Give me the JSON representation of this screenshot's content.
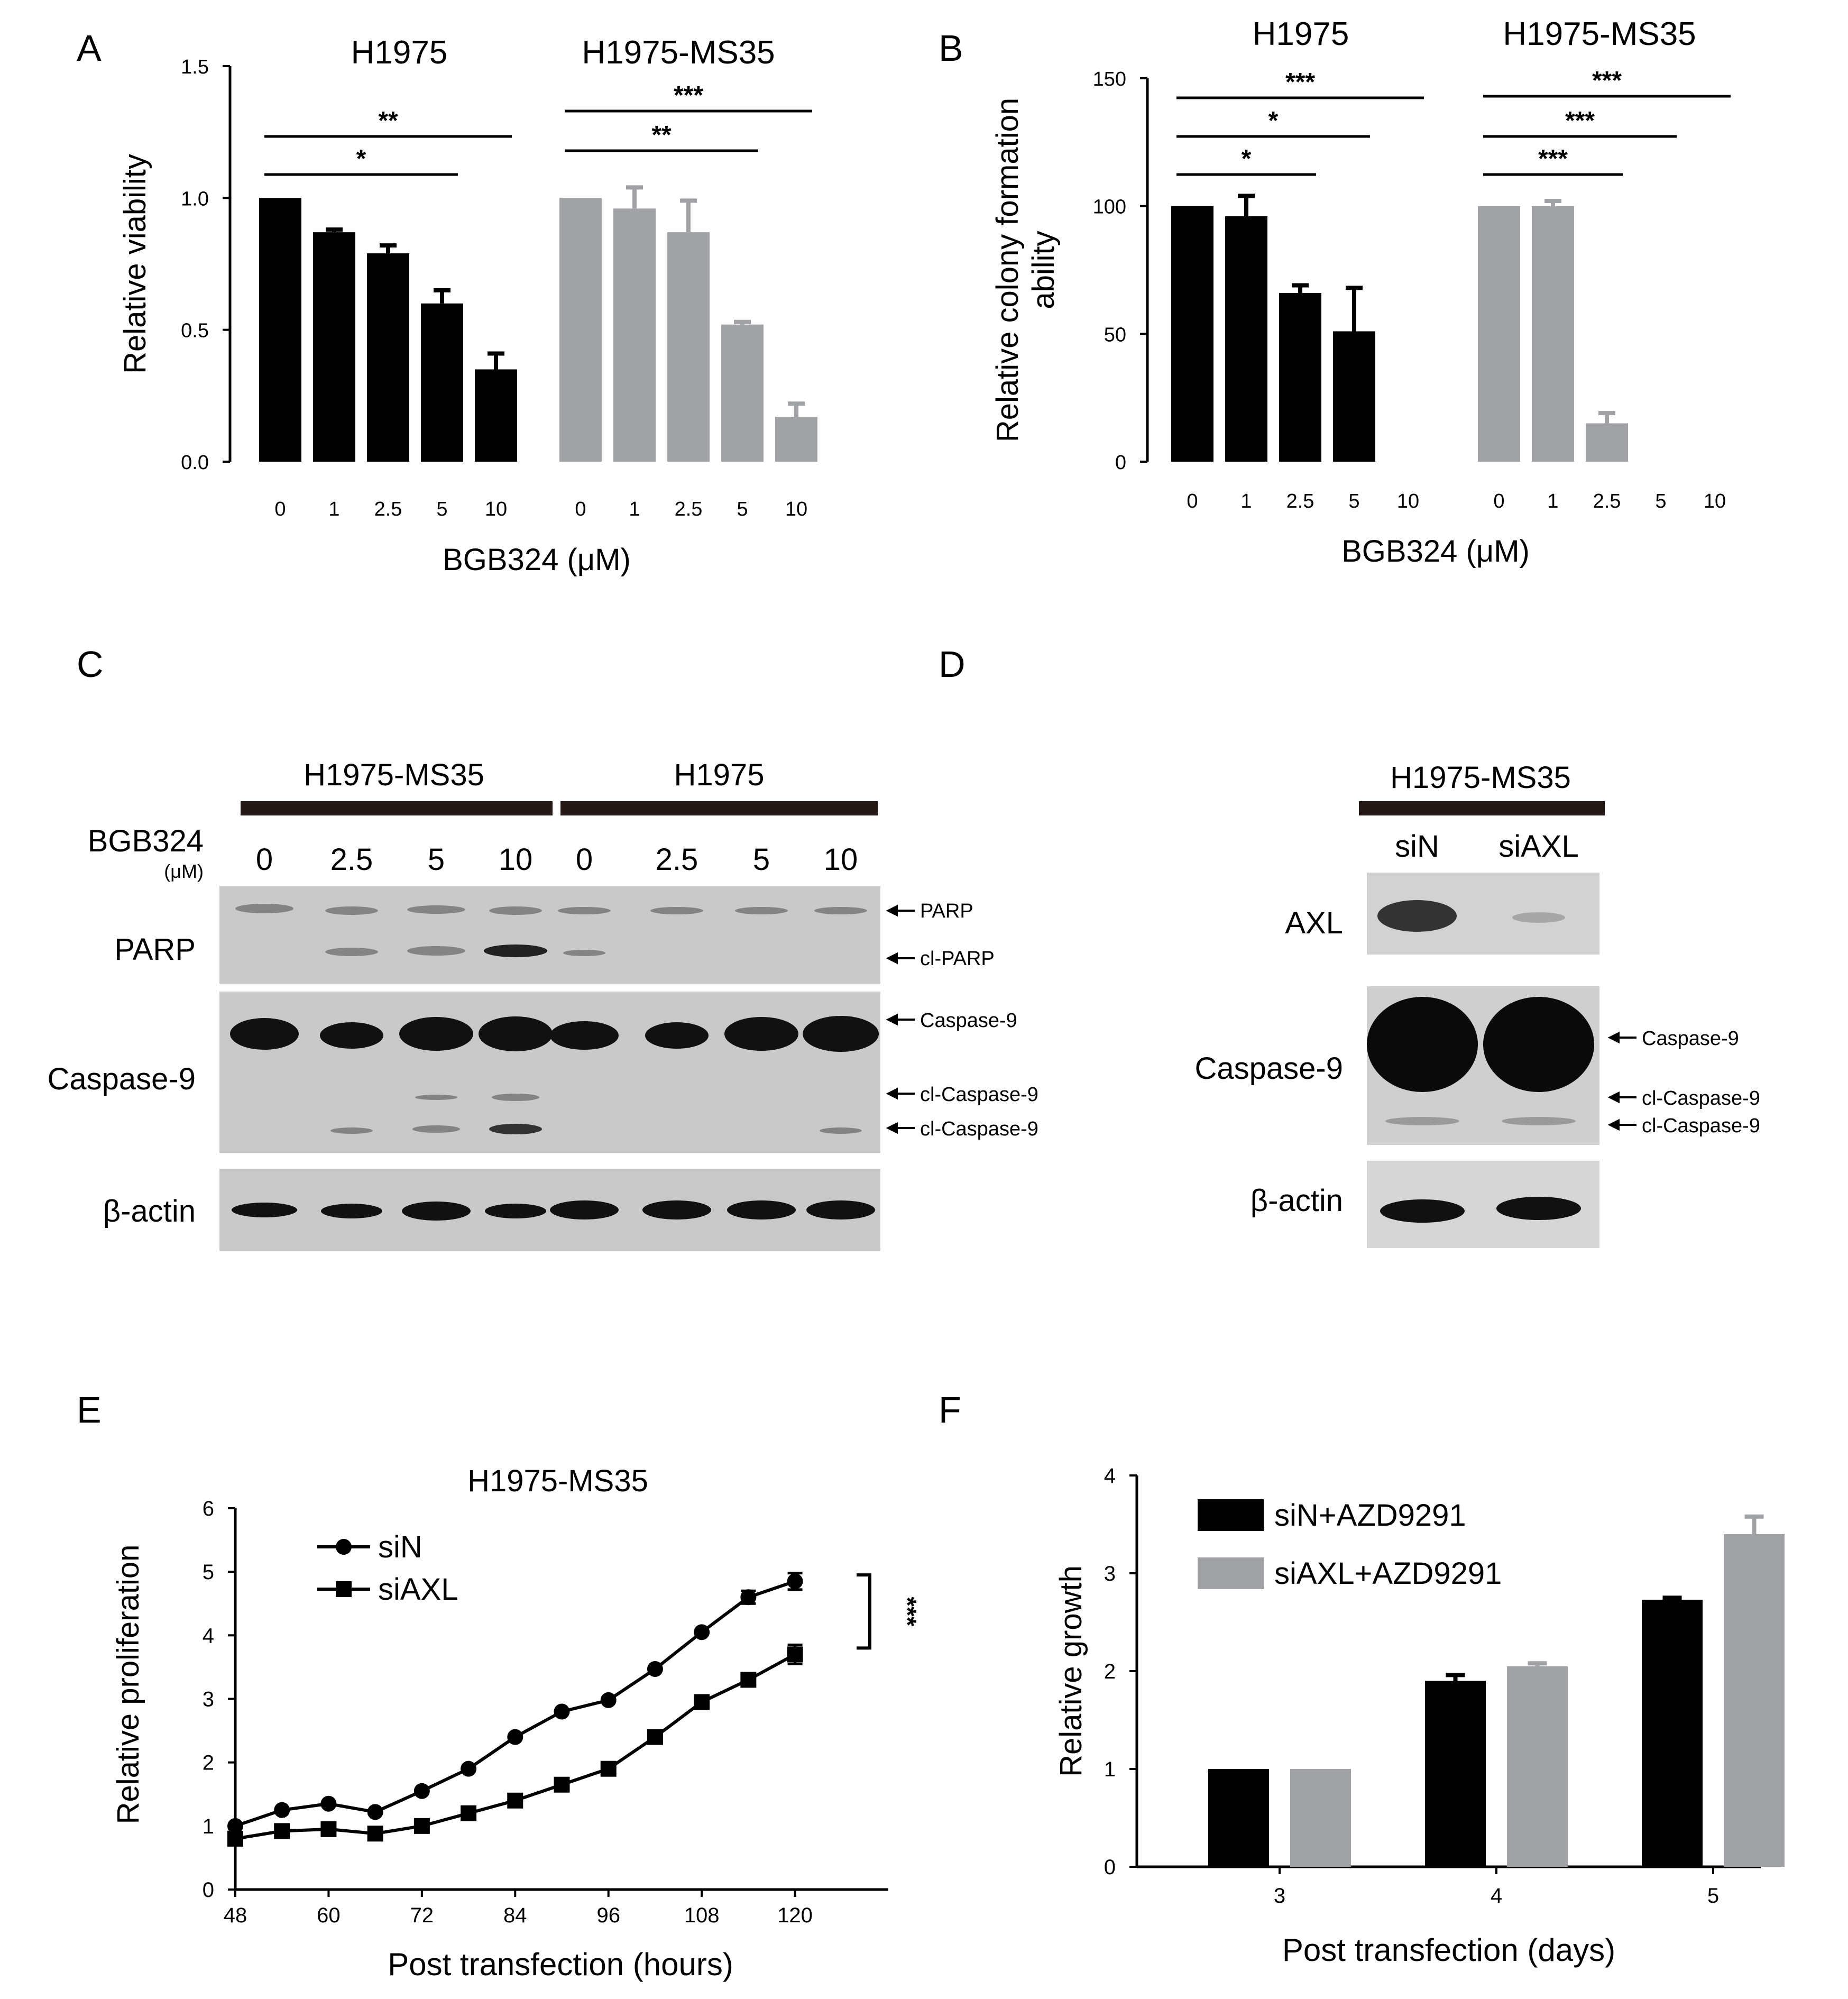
{
  "colors": {
    "black_bar": "#000000",
    "gray_bar": "#a0a2a5",
    "blot_bg": "#c9c9c9",
    "blot_band": "#111111",
    "header_bar": "#231815"
  },
  "panels": {
    "A": "A",
    "B": "B",
    "C": "C",
    "D": "D",
    "E": "E",
    "F": "F"
  },
  "chart_data": [
    {
      "id": "A",
      "type": "bar",
      "ylabel": "Relative viability",
      "xlabel": "BGB324 (μM)",
      "ylim": [
        0,
        1.5
      ],
      "yticks": [
        0.0,
        0.5,
        1.0,
        1.5
      ],
      "ytick_labels": [
        "0.0",
        "0.5",
        "1.0",
        "1.5"
      ],
      "groups": [
        {
          "title": "H1975",
          "color": "black",
          "categories": [
            "0",
            "1",
            "2.5",
            "5",
            "10"
          ],
          "values": [
            1.0,
            0.87,
            0.79,
            0.6,
            0.35
          ],
          "errors": [
            0,
            0.01,
            0.03,
            0.05,
            0.06
          ]
        },
        {
          "title": "H1975-MS35",
          "color": "gray",
          "categories": [
            "0",
            "1",
            "2.5",
            "5",
            "10"
          ],
          "values": [
            1.0,
            0.96,
            0.87,
            0.52,
            0.17
          ],
          "errors": [
            0,
            0.08,
            0.12,
            0.01,
            0.05
          ]
        }
      ],
      "significance": [
        {
          "group": 0,
          "from": 0,
          "to": 3,
          "label": "*"
        },
        {
          "group": 0,
          "from": 0,
          "to": 4,
          "label": "**"
        },
        {
          "group": 1,
          "from": 0,
          "to": 3,
          "label": "**"
        },
        {
          "group": 1,
          "from": 0,
          "to": 4,
          "label": "***"
        }
      ]
    },
    {
      "id": "B",
      "type": "bar",
      "ylabel": "Relative colony formation",
      "ylabel2": "ability",
      "xlabel": "BGB324 (μM)",
      "ylim": [
        0,
        150
      ],
      "yticks": [
        0,
        50,
        100,
        150
      ],
      "ytick_labels": [
        "0",
        "50",
        "100",
        "150"
      ],
      "groups": [
        {
          "title": "H1975",
          "color": "black",
          "categories": [
            "0",
            "1",
            "2.5",
            "5",
            "10"
          ],
          "values": [
            100,
            96,
            66,
            51,
            0
          ],
          "errors": [
            0,
            8,
            3,
            17,
            0
          ]
        },
        {
          "title": "H1975-MS35",
          "color": "gray",
          "categories": [
            "0",
            "1",
            "2.5",
            "5",
            "10"
          ],
          "values": [
            100,
            100,
            15,
            0,
            0
          ],
          "errors": [
            0,
            2,
            4,
            0,
            0
          ]
        }
      ],
      "significance": [
        {
          "group": 0,
          "from": 0,
          "to": 2,
          "label": "*"
        },
        {
          "group": 0,
          "from": 0,
          "to": 3,
          "label": "*"
        },
        {
          "group": 0,
          "from": 0,
          "to": 4,
          "label": "***"
        },
        {
          "group": 1,
          "from": 0,
          "to": 2,
          "label": "***"
        },
        {
          "group": 1,
          "from": 0,
          "to": 3,
          "label": "***"
        },
        {
          "group": 1,
          "from": 0,
          "to": 4,
          "label": "***"
        }
      ]
    },
    {
      "id": "E",
      "type": "line",
      "title": "H1975-MS35",
      "ylabel": "Relative proliferation",
      "xlabel": "Post transfection (hours)",
      "xlim": [
        48,
        132
      ],
      "ylim": [
        0,
        6
      ],
      "xticks": [
        48,
        60,
        72,
        84,
        96,
        108,
        120
      ],
      "yticks": [
        0,
        1,
        2,
        3,
        4,
        5,
        6
      ],
      "series": [
        {
          "name": "siN",
          "marker": "circle",
          "x": [
            48,
            54,
            60,
            66,
            72,
            78,
            84,
            90,
            96,
            102,
            108,
            114,
            120
          ],
          "y": [
            1.0,
            1.25,
            1.35,
            1.22,
            1.55,
            1.9,
            2.4,
            2.8,
            2.98,
            3.47,
            4.05,
            4.6,
            4.85
          ],
          "errors": [
            0,
            0,
            0,
            0,
            0,
            0,
            0,
            0,
            0,
            0,
            0,
            0.1,
            0.13
          ]
        },
        {
          "name": "siAXL",
          "marker": "square",
          "x": [
            48,
            54,
            60,
            66,
            72,
            78,
            84,
            90,
            96,
            102,
            108,
            114,
            120
          ],
          "y": [
            0.8,
            0.92,
            0.95,
            0.88,
            1.0,
            1.2,
            1.4,
            1.65,
            1.9,
            2.4,
            2.95,
            3.3,
            3.7
          ],
          "errors": [
            0,
            0,
            0,
            0,
            0,
            0,
            0,
            0,
            0,
            0,
            0,
            0.1,
            0.15
          ]
        }
      ],
      "annotation": "***"
    },
    {
      "id": "F",
      "type": "bar",
      "ylabel": "Relative growth",
      "xlabel": "Post transfection (days)",
      "ylim": [
        0,
        4
      ],
      "yticks": [
        0,
        1,
        2,
        3,
        4
      ],
      "categories": [
        "3",
        "4",
        "5"
      ],
      "series": [
        {
          "name": "siN+AZD9291",
          "color": "black",
          "values": [
            1.0,
            1.9,
            2.73
          ],
          "errors": [
            0,
            0.06,
            0.02
          ]
        },
        {
          "name": "siAXL+AZD9291",
          "color": "gray",
          "values": [
            1.0,
            2.05,
            3.4
          ],
          "errors": [
            0,
            0.03,
            0.18
          ]
        }
      ]
    }
  ],
  "blot_C": {
    "headers": [
      "H1975-MS35",
      "H1975"
    ],
    "treatment_label": "BGB324",
    "unit_label": "(μM)",
    "lanes": [
      "0",
      "2.5",
      "5",
      "10",
      "0",
      "2.5",
      "5",
      "10"
    ],
    "rows": [
      "PARP",
      "Caspase-9",
      "β-actin"
    ],
    "arrows": [
      "PARP",
      "cl-PARP",
      "Caspase-9",
      "cl-Caspase-9",
      "cl-Caspase-9"
    ]
  },
  "blot_D": {
    "header": "H1975-MS35",
    "lanes": [
      "siN",
      "siAXL"
    ],
    "rows": [
      "AXL",
      "Caspase-9",
      "β-actin"
    ],
    "arrows": [
      "Caspase-9",
      "cl-Caspase-9",
      "cl-Caspase-9"
    ]
  }
}
